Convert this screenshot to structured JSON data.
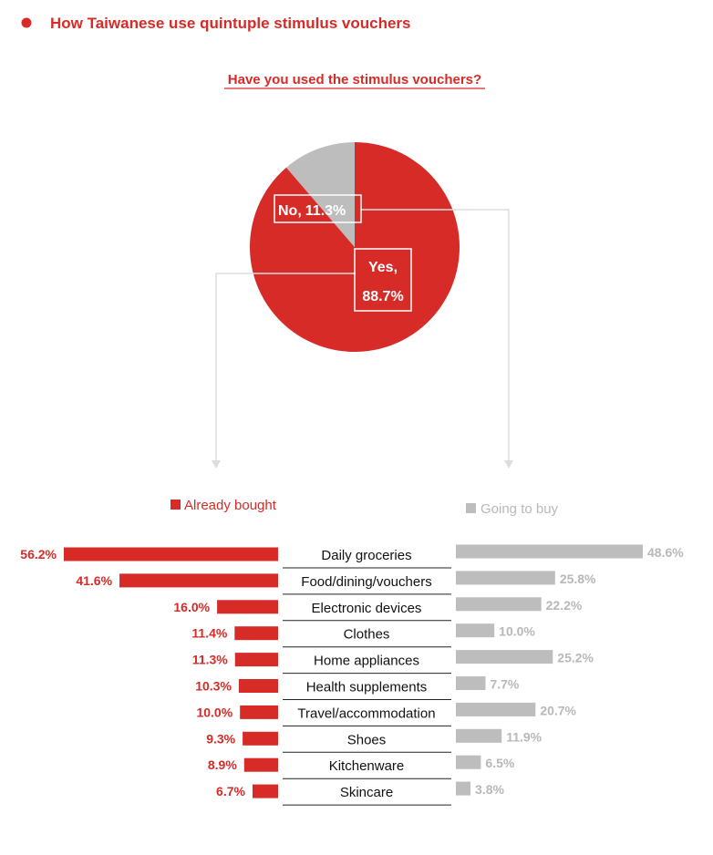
{
  "title": "How Taiwanese use quintuple stimulus vouchers",
  "colors": {
    "accent": "#d62b27",
    "gray": "#bdbdbd",
    "gray_text": "#b8b8b8",
    "connector": "#dddddd"
  },
  "chart_data": [
    {
      "type": "pie",
      "title": "Have you used the stimulus vouchers?",
      "slices": [
        {
          "label": "Yes,",
          "value": 88.7,
          "value_label": "88.7%",
          "color": "#d62b27"
        },
        {
          "label": "No,",
          "value": 11.3,
          "value_label": "11.3%",
          "color": "#bdbdbd"
        }
      ]
    },
    {
      "type": "bar",
      "orientation": "horizontal",
      "layout": "butterfly",
      "categories": [
        "Daily groceries",
        "Food/dining/vouchers",
        "Electronic devices",
        "Clothes",
        "Home appliances",
        "Health supplements",
        "Travel/accommodation",
        "Shoes",
        "Kitchenware",
        "Skincare"
      ],
      "series": [
        {
          "name": "Already bought",
          "color": "#d62b27",
          "values": [
            56.2,
            41.6,
            16.0,
            11.4,
            11.3,
            10.3,
            10.0,
            9.3,
            8.9,
            6.7
          ],
          "labels": [
            "56.2%",
            "41.6%",
            "16.0%",
            "11.4%",
            "11.3%",
            "10.3%",
            "10.0%",
            "9.3%",
            "8.9%",
            "6.7%"
          ]
        },
        {
          "name": "Going to buy",
          "color": "#bdbdbd",
          "values": [
            48.6,
            25.8,
            22.2,
            10.0,
            25.2,
            7.7,
            20.7,
            11.9,
            6.5,
            3.8
          ],
          "labels": [
            "48.6%",
            "25.8%",
            "22.2%",
            "10.0%",
            "25.2%",
            "7.7%",
            "20.7%",
            "11.9%",
            "6.5%",
            "3.8%"
          ]
        }
      ]
    }
  ]
}
